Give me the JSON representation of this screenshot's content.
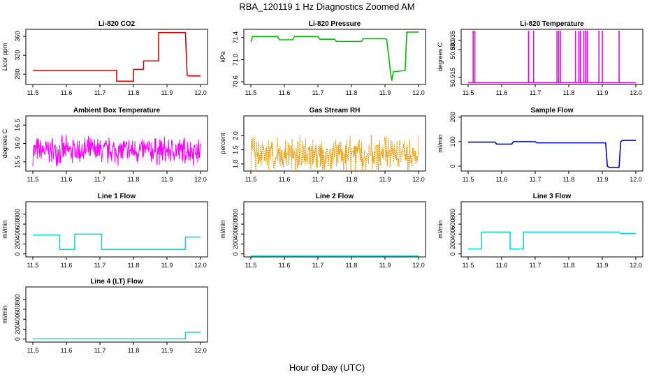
{
  "figure": {
    "title": "RBA_120119  1 Hz Diagnostics Zoomed AM",
    "xlabel": "Hour of Day (UTC)"
  },
  "chart_data": [
    {
      "id": "co2",
      "type": "line",
      "title": "Li-820 CO2",
      "ylabel": "Licor ppm",
      "color": "#dd0000",
      "xlim": [
        11.5,
        12.0
      ],
      "ylim": [
        258,
        375
      ],
      "yticks": [
        280,
        320,
        360
      ],
      "ytick_labels": [
        "280",
        "320",
        "360"
      ],
      "xticks": [
        11.5,
        11.6,
        11.7,
        11.8,
        11.9,
        12.0
      ],
      "xtick_labels": [
        "11.5",
        "11.6",
        "11.7",
        "11.8",
        "11.9",
        "12.0"
      ],
      "series": [
        {
          "name": "CO2",
          "x": [
            11.5,
            11.75,
            11.75,
            11.8,
            11.8,
            11.83,
            11.83,
            11.875,
            11.875,
            11.955,
            11.96,
            11.965,
            12.0
          ],
          "y": [
            288,
            288,
            265,
            265,
            290,
            290,
            308,
            308,
            368,
            368,
            278,
            276,
            276
          ]
        }
      ]
    },
    {
      "id": "pressure",
      "type": "line",
      "title": "Li-820 Pressure",
      "ylabel": "kPa",
      "color": "#00bb00",
      "xlim": [
        11.5,
        12.0
      ],
      "ylim": [
        70.55,
        71.55
      ],
      "yticks": [
        70.6,
        71.0,
        71.4
      ],
      "ytick_labels": [
        "70.6",
        "71.0",
        "71.4"
      ],
      "xticks": [
        11.5,
        11.6,
        11.7,
        11.8,
        11.9,
        12.0
      ],
      "xtick_labels": [
        "11.5",
        "11.6",
        "11.7",
        "11.8",
        "11.9",
        "12.0"
      ],
      "series": [
        {
          "name": "Pressure",
          "x": [
            11.5,
            11.505,
            11.58,
            11.585,
            11.625,
            11.63,
            11.7,
            11.705,
            11.75,
            11.755,
            11.83,
            11.835,
            11.9,
            11.905,
            11.915,
            11.92,
            11.925,
            11.955,
            11.96,
            11.965,
            12.0
          ],
          "y": [
            71.32,
            71.42,
            71.42,
            71.36,
            71.36,
            71.42,
            71.42,
            71.37,
            71.37,
            71.33,
            71.33,
            71.38,
            71.38,
            71.37,
            70.85,
            70.62,
            70.78,
            70.8,
            70.8,
            71.5,
            71.5
          ]
        }
      ]
    },
    {
      "id": "temperature",
      "type": "line",
      "title": "Li-820 Temperature",
      "ylabel": "degrees C",
      "color": "#ee00ee",
      "xlim": [
        11.5,
        12.0
      ],
      "ylim": [
        50.911,
        50.941
      ],
      "yticks": [
        50.915,
        50.93,
        50.935
      ],
      "ytick_labels": [
        "50.915",
        "50.930",
        "50.935"
      ],
      "xticks": [
        11.5,
        11.6,
        11.7,
        11.8,
        11.9,
        12.0
      ],
      "xtick_labels": [
        "11.5",
        "11.6",
        "11.7",
        "11.8",
        "11.9",
        "12.0"
      ],
      "spike_xs": [
        11.515,
        11.52,
        11.68,
        11.695,
        11.765,
        11.77,
        11.775,
        11.82,
        11.83,
        11.835,
        11.845,
        11.85,
        11.855,
        11.89,
        11.9,
        11.95
      ],
      "series": [
        {
          "name": "Temperature",
          "x": [
            11.5,
            12.0
          ],
          "y": [
            50.912,
            50.912
          ]
        }
      ]
    },
    {
      "id": "ambient",
      "type": "line",
      "title": "Ambient Box Temperature",
      "ylabel": "degrees C",
      "color": "#ff00ff",
      "xlim": [
        11.5,
        12.0
      ],
      "ylim": [
        15.25,
        16.75
      ],
      "yticks": [
        15.5,
        16.0,
        16.5
      ],
      "ytick_labels": [
        "15.5",
        "16.0",
        "16.5"
      ],
      "xticks": [
        11.5,
        11.6,
        11.7,
        11.8,
        11.9,
        12.0
      ],
      "xtick_labels": [
        "11.5",
        "11.6",
        "11.7",
        "11.8",
        "11.9",
        "12.0"
      ],
      "noise": {
        "center": 15.8,
        "amplitude": 0.45,
        "count": 420,
        "seed": 7
      },
      "series": [
        {
          "name": "Ambient",
          "x": [
            11.5,
            12.0
          ],
          "y": [
            15.8,
            15.8
          ]
        }
      ]
    },
    {
      "id": "rh",
      "type": "line",
      "title": "Gas Stream RH",
      "ylabel": "percent",
      "color": "#ee9900",
      "xlim": [
        11.5,
        12.0
      ],
      "ylim": [
        0.75,
        2.7
      ],
      "yticks": [
        1.0,
        1.5,
        2.0
      ],
      "ytick_labels": [
        "1.0",
        "1.5",
        "2.0"
      ],
      "xticks": [
        11.5,
        11.6,
        11.7,
        11.8,
        11.9,
        12.0
      ],
      "xtick_labels": [
        "11.5",
        "11.6",
        "11.7",
        "11.8",
        "11.9",
        "12.0"
      ],
      "noise": {
        "center": 1.35,
        "amplitude": 0.7,
        "count": 420,
        "seed": 13
      },
      "series": [
        {
          "name": "RH",
          "x": [
            11.5,
            12.0
          ],
          "y": [
            1.35,
            1.35
          ]
        }
      ]
    },
    {
      "id": "sample",
      "type": "line",
      "title": "Sample Flow",
      "ylabel": "ml/min",
      "color": "#0000cc",
      "xlim": [
        11.5,
        12.0
      ],
      "ylim": [
        -20,
        205
      ],
      "yticks": [
        0,
        100,
        200
      ],
      "ytick_labels": [
        "0",
        "100",
        "200"
      ],
      "xticks": [
        11.5,
        11.6,
        11.7,
        11.8,
        11.9,
        12.0
      ],
      "xtick_labels": [
        "11.5",
        "11.6",
        "11.7",
        "11.8",
        "11.9",
        "12.0"
      ],
      "series": [
        {
          "name": "Sample",
          "x": [
            11.5,
            11.58,
            11.585,
            11.63,
            11.635,
            11.7,
            11.705,
            11.91,
            11.915,
            11.92,
            11.95,
            11.955,
            11.96,
            12.0
          ],
          "y": [
            98,
            98,
            90,
            90,
            100,
            100,
            95,
            95,
            0,
            -5,
            -5,
            100,
            105,
            105
          ]
        }
      ]
    },
    {
      "id": "line1",
      "type": "line",
      "title": "Line 1 Flow",
      "ylabel": "ml/min",
      "color": "#00dddd",
      "xlim": [
        11.5,
        12.0
      ],
      "ylim": [
        -60,
        1050
      ],
      "yticks": [
        0,
        200,
        400,
        600,
        800
      ],
      "ytick_labels": [
        "0",
        "200",
        "400",
        "600",
        "800"
      ],
      "xticks": [
        11.5,
        11.6,
        11.7,
        11.8,
        11.9,
        12.0
      ],
      "xtick_labels": [
        "11.5",
        "11.6",
        "11.7",
        "11.8",
        "11.9",
        "12.0"
      ],
      "series": [
        {
          "name": "Line 1",
          "x": [
            11.5,
            11.58,
            11.58,
            11.625,
            11.625,
            11.705,
            11.705,
            11.955,
            11.955,
            12.0
          ],
          "y": [
            380,
            380,
            90,
            90,
            400,
            400,
            90,
            90,
            340,
            340
          ]
        }
      ]
    },
    {
      "id": "line2",
      "type": "line",
      "title": "Line 2 Flow",
      "ylabel": "ml/min",
      "color": "#00dddd",
      "xlim": [
        11.5,
        12.0
      ],
      "ylim": [
        -60,
        1050
      ],
      "yticks": [
        0,
        200,
        400,
        600,
        800
      ],
      "ytick_labels": [
        "0",
        "200",
        "400",
        "600",
        "800"
      ],
      "xticks": [
        11.5,
        11.6,
        11.7,
        11.8,
        11.9,
        12.0
      ],
      "xtick_labels": [
        "11.5",
        "11.6",
        "11.7",
        "11.8",
        "11.9",
        "12.0"
      ],
      "series": [
        {
          "name": "Line 2",
          "x": [
            11.5,
            12.0
          ],
          "y": [
            -40,
            -40
          ]
        }
      ]
    },
    {
      "id": "line3",
      "type": "line",
      "title": "Line 3 Flow",
      "ylabel": "ml/min",
      "color": "#00dddd",
      "xlim": [
        11.5,
        12.0
      ],
      "ylim": [
        -60,
        1050
      ],
      "yticks": [
        0,
        200,
        400,
        600,
        800
      ],
      "ytick_labels": [
        "0",
        "200",
        "400",
        "600",
        "800"
      ],
      "xticks": [
        11.5,
        11.6,
        11.7,
        11.8,
        11.9,
        12.0
      ],
      "xtick_labels": [
        "11.5",
        "11.6",
        "11.7",
        "11.8",
        "11.9",
        "12.0"
      ],
      "series": [
        {
          "name": "Line 3",
          "x": [
            11.5,
            11.54,
            11.54,
            11.625,
            11.625,
            11.665,
            11.665,
            11.95,
            11.955,
            12.0
          ],
          "y": [
            100,
            100,
            440,
            440,
            100,
            100,
            440,
            440,
            410,
            410
          ]
        }
      ]
    },
    {
      "id": "line4",
      "type": "line",
      "title": "Line 4 (LT) Flow",
      "ylabel": "ml/min",
      "color": "#00dddd",
      "xlim": [
        11.5,
        12.0
      ],
      "ylim": [
        -60,
        1050
      ],
      "yticks": [
        0,
        200,
        400,
        600,
        800
      ],
      "ytick_labels": [
        "0",
        "200",
        "400",
        "600",
        "800"
      ],
      "xticks": [
        11.5,
        11.6,
        11.7,
        11.8,
        11.9,
        12.0
      ],
      "xtick_labels": [
        "11.5",
        "11.6",
        "11.7",
        "11.8",
        "11.9",
        "12.0"
      ],
      "series": [
        {
          "name": "Line 4",
          "x": [
            11.5,
            11.955,
            11.955,
            12.0
          ],
          "y": [
            5,
            5,
            140,
            140
          ]
        }
      ]
    }
  ]
}
